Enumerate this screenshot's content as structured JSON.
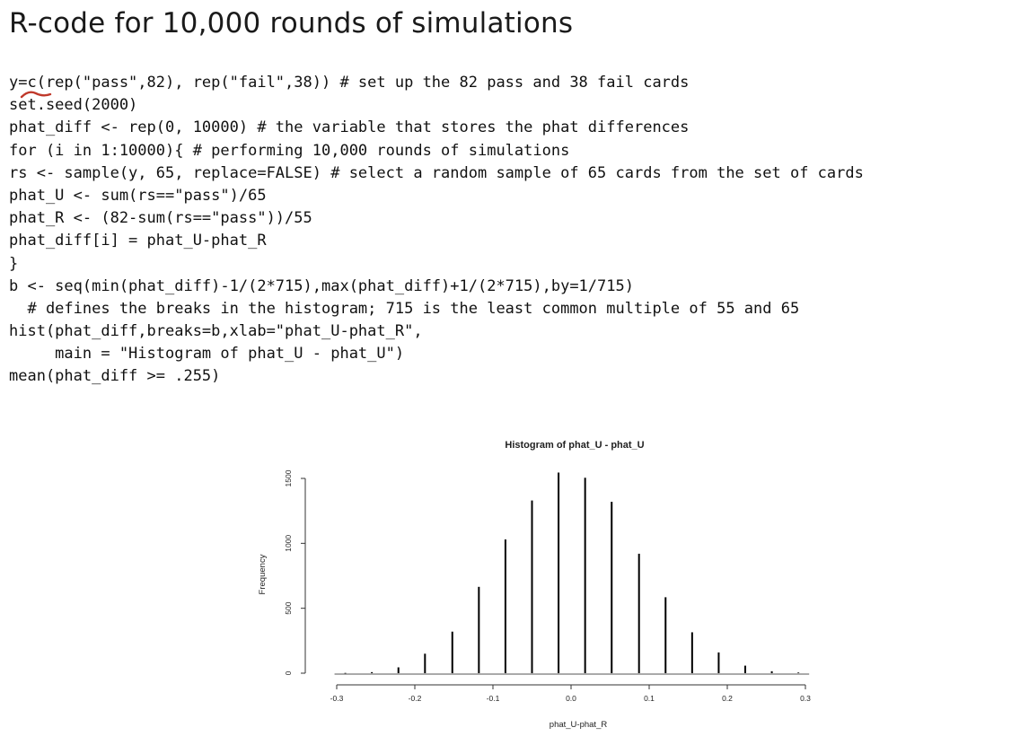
{
  "slide": {
    "title": "R-code for 10,000 rounds of simulations"
  },
  "code_lines": [
    "y=c(rep(\"pass\",82), rep(\"fail\",38)) # set up the 82 pass and 38 fail cards",
    "set.seed(2000)",
    "phat_diff <- rep(0, 10000) # the variable that stores the phat differences",
    "for (i in 1:10000){ # performing 10,000 rounds of simulations",
    "rs <- sample(y, 65, replace=FALSE) # select a random sample of 65 cards from the set of cards",
    "phat_U <- sum(rs==\"pass\")/65",
    "phat_R <- (82-sum(rs==\"pass\"))/55",
    "phat_diff[i] = phat_U-phat_R",
    "}",
    "b <- seq(min(phat_diff)-1/(2*715),max(phat_diff)+1/(2*715),by=1/715)",
    "  # defines the breaks in the histogram; 715 is the least common multiple of 55 and 65",
    "hist(phat_diff,breaks=b,xlab=\"phat_U-phat_R\",",
    "     main = \"Histogram of phat_U - phat_U\")",
    "mean(phat_diff >= .255)"
  ],
  "annotation_color": "#c0392b",
  "chart_data": {
    "type": "bar",
    "title": "Histogram of phat_U - phat_U",
    "xlabel": "phat_U-phat_R",
    "ylabel": "Frequency",
    "xlim": [
      -0.3,
      0.3
    ],
    "ylim": [
      0,
      1550
    ],
    "x_ticks": [
      -0.3,
      -0.2,
      -0.1,
      0.0,
      0.1,
      0.2,
      0.3
    ],
    "x_tick_labels": [
      "-0.3",
      "-0.2",
      "-0.1",
      "0.0",
      "0.1",
      "0.2",
      "0.3"
    ],
    "y_ticks": [
      0,
      500,
      1000,
      1500
    ],
    "y_tick_labels": [
      "0",
      "500",
      "1000",
      "1500"
    ],
    "x": [
      -0.289,
      -0.255,
      -0.221,
      -0.187,
      -0.152,
      -0.118,
      -0.084,
      -0.05,
      -0.016,
      0.018,
      0.052,
      0.087,
      0.121,
      0.155,
      0.189,
      0.223,
      0.257,
      0.291
    ],
    "values": [
      2,
      8,
      45,
      150,
      320,
      665,
      1030,
      1330,
      1545,
      1505,
      1320,
      920,
      585,
      315,
      160,
      58,
      15,
      5
    ],
    "bar_color": "#000000",
    "grid": false
  }
}
